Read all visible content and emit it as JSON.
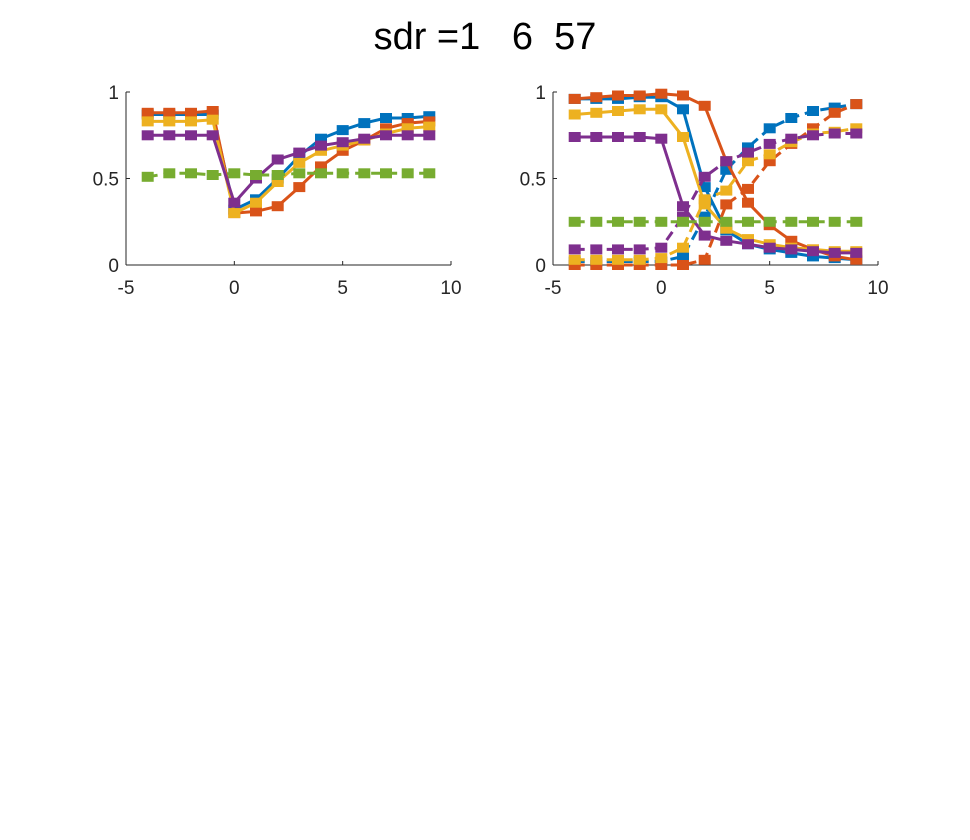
{
  "figure": {
    "title": "sdr =1   6  57"
  },
  "chart_data": [
    {
      "type": "line",
      "xlim": [
        -5,
        10
      ],
      "ylim": [
        0,
        1
      ],
      "xticks": [
        "-5",
        "0",
        "5",
        "10"
      ],
      "yticks": [
        "0",
        "0.5",
        "1"
      ],
      "grid": false,
      "legend": "none",
      "x": [
        -4,
        -3,
        -2,
        -1,
        0,
        1,
        2,
        3,
        4,
        5,
        6,
        7,
        8,
        9
      ],
      "series": [
        {
          "color": "#0072BD",
          "style": "solid",
          "values": [
            0.87,
            0.87,
            0.87,
            0.87,
            0.32,
            0.38,
            0.5,
            0.63,
            0.73,
            0.78,
            0.82,
            0.85,
            0.85,
            0.86
          ]
        },
        {
          "color": "#D95319",
          "style": "solid",
          "values": [
            0.88,
            0.88,
            0.88,
            0.89,
            0.3,
            0.31,
            0.34,
            0.45,
            0.57,
            0.66,
            0.72,
            0.79,
            0.82,
            0.83
          ]
        },
        {
          "color": "#EDB120",
          "style": "solid",
          "values": [
            0.83,
            0.83,
            0.83,
            0.84,
            0.3,
            0.36,
            0.48,
            0.59,
            0.66,
            0.69,
            0.72,
            0.76,
            0.79,
            0.8
          ]
        },
        {
          "color": "#7E2F8E",
          "style": "solid",
          "values": [
            0.75,
            0.75,
            0.75,
            0.75,
            0.36,
            0.5,
            0.61,
            0.65,
            0.69,
            0.71,
            0.73,
            0.75,
            0.75,
            0.75
          ]
        },
        {
          "color": "#77AC30",
          "style": "dashed",
          "values": [
            0.51,
            0.53,
            0.53,
            0.52,
            0.53,
            0.52,
            0.52,
            0.53,
            0.53,
            0.53,
            0.53,
            0.53,
            0.53,
            0.53
          ]
        }
      ]
    },
    {
      "type": "line",
      "xlim": [
        -5,
        10
      ],
      "ylim": [
        0,
        1
      ],
      "xticks": [
        "-5",
        "0",
        "5",
        "10"
      ],
      "yticks": [
        "0",
        "0.5",
        "1"
      ],
      "grid": false,
      "legend": "none",
      "x": [
        -4,
        -3,
        -2,
        -1,
        0,
        1,
        2,
        3,
        4,
        5,
        6,
        7,
        8,
        9
      ],
      "series": [
        {
          "color": "#0072BD",
          "style": "solid",
          "values": [
            0.96,
            0.96,
            0.96,
            0.97,
            0.97,
            0.9,
            0.45,
            0.2,
            0.12,
            0.09,
            0.07,
            0.05,
            0.04,
            0.03
          ]
        },
        {
          "color": "#0072BD",
          "style": "dashed",
          "values": [
            0.02,
            0.02,
            0.02,
            0.02,
            0.02,
            0.05,
            0.28,
            0.55,
            0.68,
            0.79,
            0.85,
            0.89,
            0.91,
            0.93
          ]
        },
        {
          "color": "#D95319",
          "style": "solid",
          "values": [
            0.96,
            0.97,
            0.98,
            0.98,
            0.99,
            0.98,
            0.92,
            0.6,
            0.36,
            0.23,
            0.14,
            0.09,
            0.05,
            0.03
          ]
        },
        {
          "color": "#D95319",
          "style": "dashed",
          "values": [
            0.0,
            0.0,
            0.0,
            0.0,
            0.0,
            0.0,
            0.03,
            0.35,
            0.44,
            0.6,
            0.7,
            0.79,
            0.88,
            0.93
          ]
        },
        {
          "color": "#EDB120",
          "style": "solid",
          "values": [
            0.87,
            0.88,
            0.89,
            0.9,
            0.9,
            0.74,
            0.35,
            0.21,
            0.15,
            0.12,
            0.1,
            0.09,
            0.08,
            0.08
          ]
        },
        {
          "color": "#EDB120",
          "style": "dashed",
          "values": [
            0.03,
            0.03,
            0.03,
            0.03,
            0.04,
            0.1,
            0.38,
            0.43,
            0.6,
            0.64,
            0.71,
            0.76,
            0.77,
            0.79
          ]
        },
        {
          "color": "#7E2F8E",
          "style": "solid",
          "values": [
            0.74,
            0.74,
            0.74,
            0.74,
            0.73,
            0.34,
            0.17,
            0.14,
            0.12,
            0.1,
            0.09,
            0.08,
            0.07,
            0.07
          ]
        },
        {
          "color": "#7E2F8E",
          "style": "dashed",
          "values": [
            0.09,
            0.09,
            0.09,
            0.09,
            0.1,
            0.28,
            0.51,
            0.6,
            0.65,
            0.7,
            0.73,
            0.75,
            0.76,
            0.76
          ]
        },
        {
          "color": "#77AC30",
          "style": "dashed",
          "values": [
            0.25,
            0.25,
            0.25,
            0.25,
            0.25,
            0.25,
            0.25,
            0.25,
            0.25,
            0.25,
            0.25,
            0.25,
            0.25,
            0.25
          ]
        }
      ]
    }
  ]
}
